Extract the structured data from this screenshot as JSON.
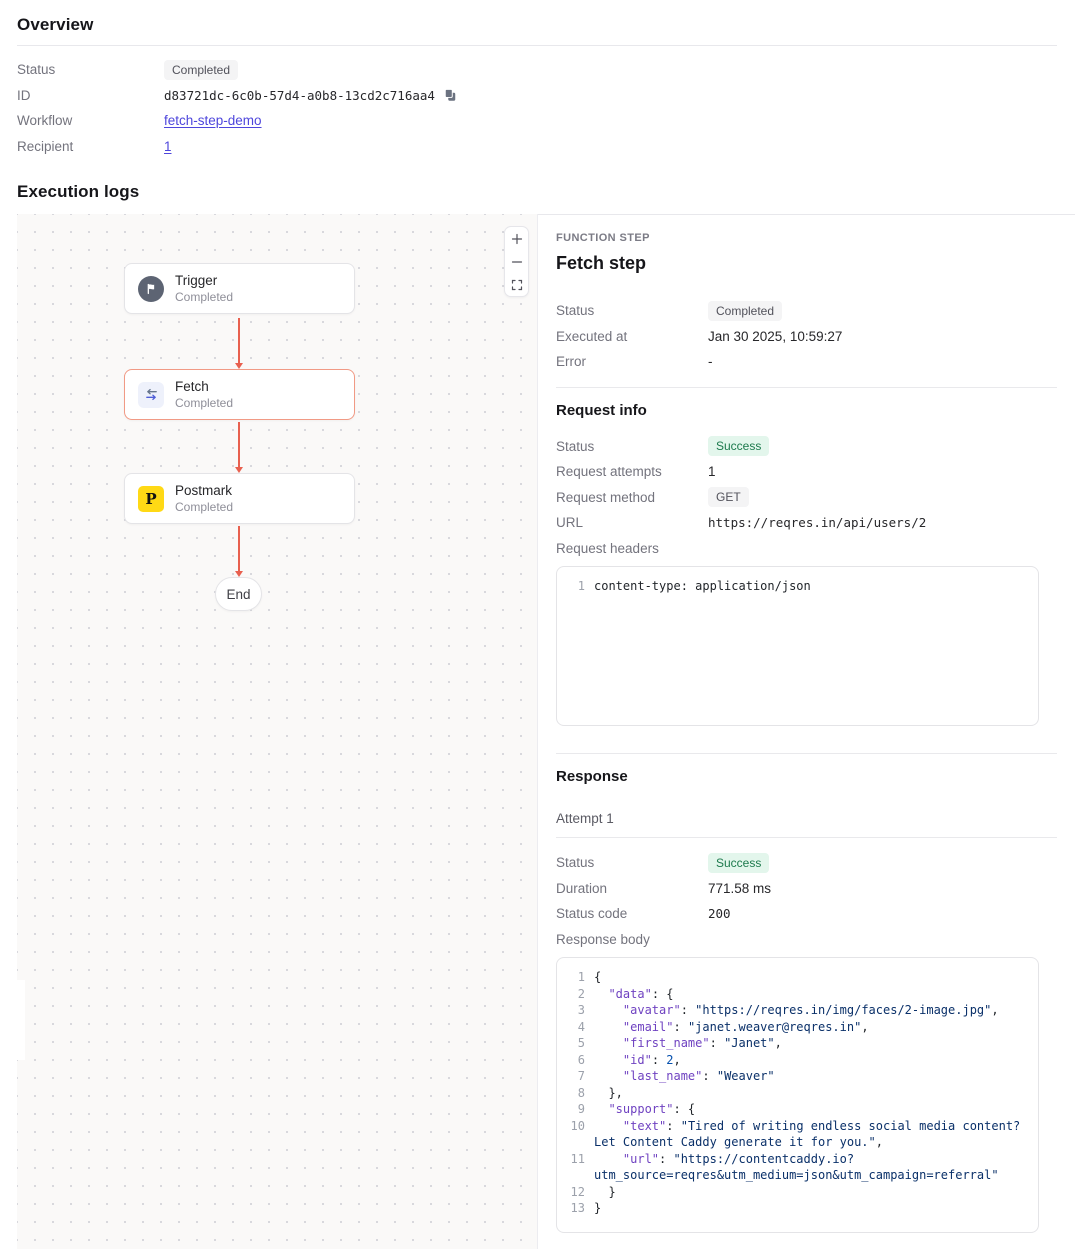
{
  "overview": {
    "title": "Overview",
    "status_label": "Status",
    "status_value": "Completed",
    "id_label": "ID",
    "id_value": "d83721dc-6c0b-57d4-a0b8-13cd2c716aa4",
    "workflow_label": "Workflow",
    "workflow_value": "fetch-step-demo",
    "recipient_label": "Recipient",
    "recipient_value": "1"
  },
  "logs_title": "Execution logs",
  "canvas": {
    "trigger": {
      "title": "Trigger",
      "subtitle": "Completed"
    },
    "fetch": {
      "title": "Fetch",
      "subtitle": "Completed"
    },
    "postmark": {
      "title": "Postmark",
      "subtitle": "Completed",
      "icon_letter": "P"
    },
    "end_label": "End"
  },
  "panel": {
    "kicker": "FUNCTION STEP",
    "title": "Fetch step",
    "status_label": "Status",
    "status_value": "Completed",
    "executed_label": "Executed at",
    "executed_value": "Jan 30 2025, 10:59:27",
    "error_label": "Error",
    "error_value": "-",
    "request": {
      "title": "Request info",
      "status_label": "Status",
      "status_value": "Success",
      "attempts_label": "Request attempts",
      "attempts_value": "1",
      "method_label": "Request method",
      "method_value": "GET",
      "url_label": "URL",
      "url_value": "https://reqres.in/api/users/2",
      "headers_label": "Request headers",
      "headers_code": {
        "lines": [
          {
            "n": "1",
            "segs": [
              {
                "t": "plain",
                "v": "content-type: application/json"
              }
            ]
          }
        ]
      }
    },
    "response": {
      "title": "Response",
      "attempt_label": "Attempt 1",
      "status_label": "Status",
      "status_value": "Success",
      "duration_label": "Duration",
      "duration_value": "771.58 ms",
      "code_label": "Status code",
      "code_value": "200",
      "body_label": "Response body",
      "body_code": {
        "lines": [
          {
            "n": "1",
            "segs": [
              {
                "t": "punct",
                "v": "{"
              }
            ]
          },
          {
            "n": "2",
            "segs": [
              {
                "t": "punct",
                "v": "  "
              },
              {
                "t": "key",
                "v": "\"data\""
              },
              {
                "t": "punct",
                "v": ": {"
              }
            ]
          },
          {
            "n": "3",
            "segs": [
              {
                "t": "punct",
                "v": "    "
              },
              {
                "t": "key",
                "v": "\"avatar\""
              },
              {
                "t": "punct",
                "v": ": "
              },
              {
                "t": "str",
                "v": "\"https://reqres.in/img/faces/2-image.jpg\""
              },
              {
                "t": "punct",
                "v": ","
              }
            ]
          },
          {
            "n": "4",
            "segs": [
              {
                "t": "punct",
                "v": "    "
              },
              {
                "t": "key",
                "v": "\"email\""
              },
              {
                "t": "punct",
                "v": ": "
              },
              {
                "t": "str",
                "v": "\"janet.weaver@reqres.in\""
              },
              {
                "t": "punct",
                "v": ","
              }
            ]
          },
          {
            "n": "5",
            "segs": [
              {
                "t": "punct",
                "v": "    "
              },
              {
                "t": "key",
                "v": "\"first_name\""
              },
              {
                "t": "punct",
                "v": ": "
              },
              {
                "t": "str",
                "v": "\"Janet\""
              },
              {
                "t": "punct",
                "v": ","
              }
            ]
          },
          {
            "n": "6",
            "segs": [
              {
                "t": "punct",
                "v": "    "
              },
              {
                "t": "key",
                "v": "\"id\""
              },
              {
                "t": "punct",
                "v": ": "
              },
              {
                "t": "num",
                "v": "2"
              },
              {
                "t": "punct",
                "v": ","
              }
            ]
          },
          {
            "n": "7",
            "segs": [
              {
                "t": "punct",
                "v": "    "
              },
              {
                "t": "key",
                "v": "\"last_name\""
              },
              {
                "t": "punct",
                "v": ": "
              },
              {
                "t": "str",
                "v": "\"Weaver\""
              }
            ]
          },
          {
            "n": "8",
            "segs": [
              {
                "t": "punct",
                "v": "  },"
              }
            ]
          },
          {
            "n": "9",
            "segs": [
              {
                "t": "punct",
                "v": "  "
              },
              {
                "t": "key",
                "v": "\"support\""
              },
              {
                "t": "punct",
                "v": ": {"
              }
            ]
          },
          {
            "n": "10",
            "segs": [
              {
                "t": "punct",
                "v": "    "
              },
              {
                "t": "key",
                "v": "\"text\""
              },
              {
                "t": "punct",
                "v": ": "
              },
              {
                "t": "str",
                "v": "\"Tired of writing endless social media content?\nLet Content Caddy generate it for you.\""
              },
              {
                "t": "punct",
                "v": ","
              }
            ]
          },
          {
            "n": "11",
            "segs": [
              {
                "t": "punct",
                "v": "    "
              },
              {
                "t": "key",
                "v": "\"url\""
              },
              {
                "t": "punct",
                "v": ": "
              },
              {
                "t": "str",
                "v": "\"https://contentcaddy.io?\nutm_source=reqres&utm_medium=json&utm_campaign=referral\""
              }
            ]
          },
          {
            "n": "12",
            "segs": [
              {
                "t": "punct",
                "v": "  }"
              }
            ]
          },
          {
            "n": "13",
            "segs": [
              {
                "t": "punct",
                "v": "}"
              }
            ]
          }
        ]
      }
    }
  },
  "colors": {
    "accent_arrow": "#e8604f",
    "selected_node_border": "#f19a85",
    "link": "#4e46dc",
    "success_bg": "#e3f6ec",
    "success_text": "#1d7a4d",
    "neutral_badge_bg": "#f4f4f5",
    "neutral_badge_text": "#52525b",
    "postmark_yellow": "#ffd915",
    "trigger_gray": "#5d6473",
    "fetch_icon_bg": "#eef1fb",
    "tok_key": "#6f42c1",
    "tok_str": "#0a3069",
    "tok_num": "#0550ae",
    "tok_plain": "#1f2328"
  }
}
